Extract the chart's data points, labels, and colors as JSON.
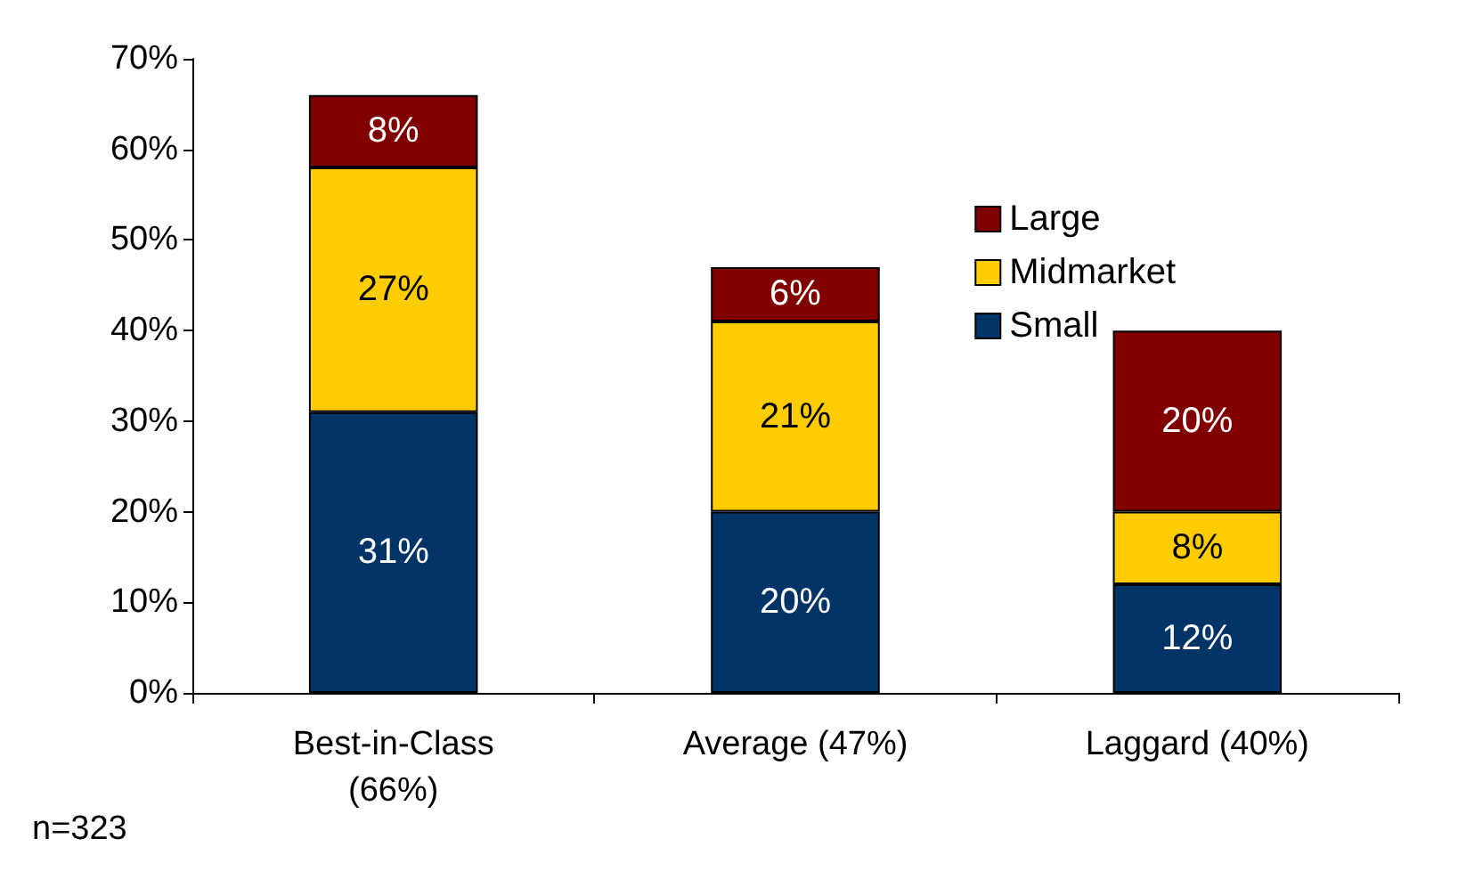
{
  "chart_data": {
    "type": "bar",
    "stacked": true,
    "categories": [
      "Best-in-Class\n(66%)",
      "Average (47%)",
      "Laggard (40%)"
    ],
    "series": [
      {
        "name": "Small",
        "color": "#003366",
        "values": [
          31,
          20,
          12
        ],
        "value_labels": [
          "31%",
          "20%",
          "12%"
        ]
      },
      {
        "name": "Midmarket",
        "color": "#ffcc00",
        "values": [
          27,
          21,
          8
        ],
        "value_labels": [
          "27%",
          "21%",
          "8%"
        ]
      },
      {
        "name": "Large",
        "color": "#800000",
        "values": [
          8,
          6,
          20
        ],
        "value_labels": [
          "8%",
          "6%",
          "20%"
        ]
      }
    ],
    "ylim": [
      0,
      70
    ],
    "yticks": [
      {
        "value": 0,
        "label": "0%"
      },
      {
        "value": 10,
        "label": "10%"
      },
      {
        "value": 20,
        "label": "20%"
      },
      {
        "value": 30,
        "label": "30%"
      },
      {
        "value": 40,
        "label": "40%"
      },
      {
        "value": 50,
        "label": "50%"
      },
      {
        "value": 60,
        "label": "60%"
      },
      {
        "value": 70,
        "label": "70%"
      }
    ],
    "grid": false,
    "legend": "right",
    "annotations": [
      "n=323"
    ]
  }
}
